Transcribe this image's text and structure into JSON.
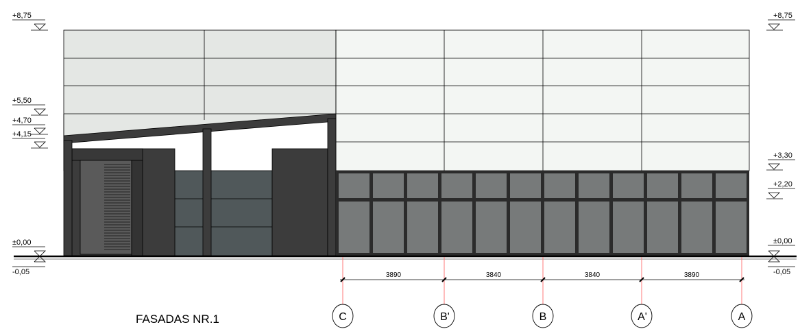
{
  "drawing_title": "FASADAS NR.1",
  "levels_left": [
    {
      "label": "+8,75"
    },
    {
      "label": "+5,50"
    },
    {
      "label": "+4,70"
    },
    {
      "label": "+4,15"
    },
    {
      "label": "±0,00"
    },
    {
      "label": "-0,05"
    }
  ],
  "levels_right": [
    {
      "label": "+8,75"
    },
    {
      "label": "+3,30"
    },
    {
      "label": "+2,20"
    },
    {
      "label": "±0,00"
    },
    {
      "label": "-0,05"
    }
  ],
  "dimensions": [
    "3890",
    "3840",
    "3840",
    "3890"
  ],
  "axes": [
    "C",
    "B'",
    "B",
    "A'",
    "A"
  ],
  "colors": {
    "upper_panels_left": "#e4e7e4",
    "upper_panels_right": "#f3f6f3",
    "dark_frame": "#3c3c3c",
    "glazing": "#777a7a",
    "dark_glazing": "#50585a",
    "axis_line": "#ff7a7a"
  }
}
